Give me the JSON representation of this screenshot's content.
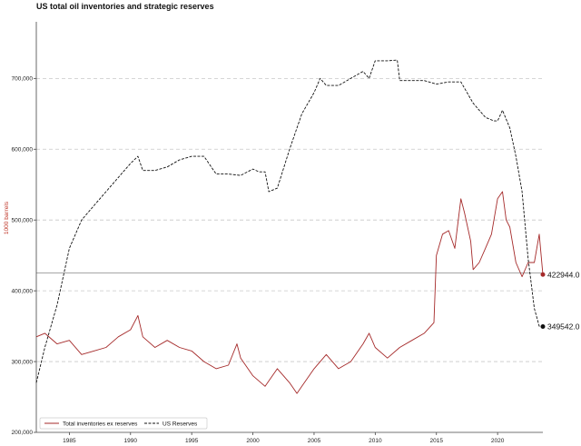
{
  "chart_data": {
    "type": "line",
    "title": "US total oil inventories and strategic reserves",
    "ylabel": "1000 barrels",
    "ylabel_color": "#c0392b",
    "xlim": [
      1982.3,
      2023.7
    ],
    "ylim": [
      200000,
      780000
    ],
    "yticks": [
      200000,
      300000,
      400000,
      500000,
      600000,
      700000
    ],
    "ytick_labels": [
      "200,000",
      "300,000",
      "400,000",
      "500,000",
      "600,000",
      "700,000"
    ],
    "xticks": [
      1985,
      1990,
      1995,
      2000,
      2005,
      2010,
      2015,
      2020
    ],
    "xtick_labels": [
      "1985",
      "1990",
      "1995",
      "2000",
      "2005",
      "2010",
      "2015",
      "2020"
    ],
    "grid": "horizontal-dashed",
    "legend_position": "bottom-left",
    "reference_line": {
      "y": 425000,
      "color": "#888888"
    },
    "series": [
      {
        "name": "Total inventories ex reserves",
        "color": "#a52a2a",
        "style": "solid",
        "end_value": 422944.0,
        "end_label": "422944.0",
        "x": [
          1982.3,
          1983,
          1984,
          1985,
          1986,
          1987,
          1988,
          1989,
          1990,
          1990.6,
          1991,
          1992,
          1993,
          1994,
          1995,
          1996,
          1997,
          1998,
          1998.7,
          1999,
          2000,
          2001,
          2002,
          2003,
          2003.6,
          2004,
          2005,
          2006,
          2007,
          2008,
          2009,
          2009.5,
          2010,
          2011,
          2012,
          2013,
          2014,
          2014.8,
          2015,
          2015.5,
          2016,
          2016.5,
          2017,
          2017.3,
          2017.8,
          2018,
          2018.5,
          2019,
          2019.5,
          2020,
          2020.4,
          2020.7,
          2021,
          2021.5,
          2022,
          2022.5,
          2023,
          2023.4,
          2023.7
        ],
        "y": [
          335000,
          340000,
          325000,
          330000,
          310000,
          315000,
          320000,
          335000,
          345000,
          365000,
          335000,
          320000,
          330000,
          320000,
          315000,
          300000,
          290000,
          295000,
          325000,
          305000,
          280000,
          265000,
          290000,
          270000,
          255000,
          265000,
          290000,
          310000,
          290000,
          300000,
          325000,
          340000,
          320000,
          305000,
          320000,
          330000,
          340000,
          355000,
          450000,
          480000,
          485000,
          460000,
          530000,
          510000,
          470000,
          430000,
          440000,
          460000,
          480000,
          530000,
          540000,
          500000,
          490000,
          440000,
          420000,
          440000,
          440000,
          480000,
          422944
        ]
      },
      {
        "name": "US Reserves",
        "color": "#111111",
        "style": "dashed",
        "end_value": 349542.0,
        "end_label": "349542.0",
        "x": [
          1982.3,
          1983,
          1984,
          1985,
          1986,
          1987,
          1988,
          1989,
          1990,
          1990.6,
          1991,
          1992,
          1993,
          1994,
          1995,
          1996,
          1997,
          1998,
          1999,
          2000,
          2000.5,
          2001,
          2001.3,
          2002,
          2003,
          2004,
          2005,
          2005.5,
          2006,
          2007,
          2008,
          2009,
          2009.5,
          2010,
          2011,
          2011.8,
          2012,
          2013,
          2014,
          2015,
          2016,
          2017,
          2018,
          2019,
          2019.7,
          2020,
          2020.4,
          2021,
          2021.5,
          2022,
          2022.5,
          2023,
          2023.4,
          2023.7
        ],
        "y": [
          270000,
          320000,
          380000,
          460000,
          500000,
          520000,
          540000,
          560000,
          580000,
          590000,
          570000,
          570000,
          575000,
          585000,
          590000,
          590000,
          565000,
          565000,
          563000,
          572000,
          568000,
          568000,
          540000,
          545000,
          600000,
          650000,
          680000,
          700000,
          690000,
          690000,
          700000,
          710000,
          700000,
          725000,
          725000,
          726000,
          697000,
          697000,
          697000,
          692000,
          695000,
          695000,
          665000,
          645000,
          640000,
          640000,
          655000,
          630000,
          590000,
          540000,
          445000,
          375000,
          350000,
          349542
        ]
      }
    ]
  }
}
